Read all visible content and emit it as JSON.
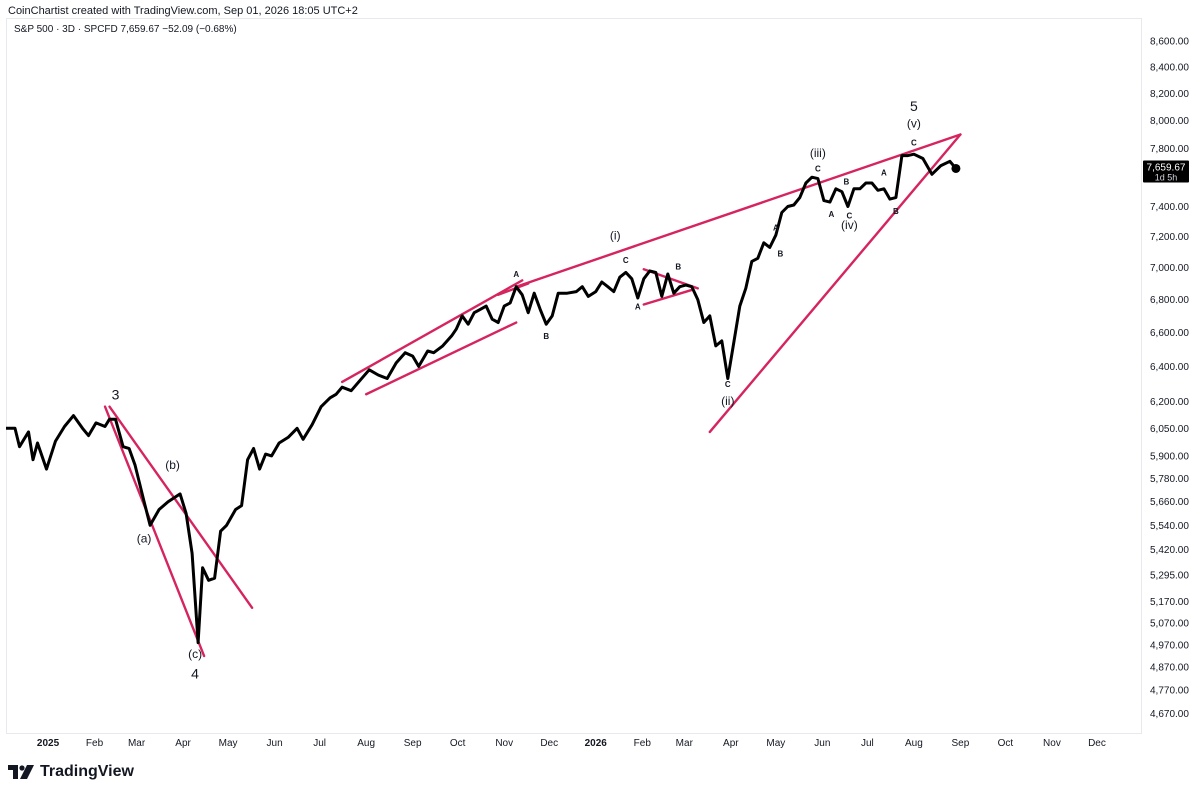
{
  "header": {
    "credit": "CoinChartist created with TradingView.com, Sep 01, 2026 18:05 UTC+2",
    "symbol_line": "S&P 500 · 3D · SPCFD  7,659.67  −52.09 (−0.68%)"
  },
  "footer": {
    "brand": "TradingView"
  },
  "colors": {
    "price": "#000000",
    "trendline": "#d6245e",
    "price_tag_bg": "#000000",
    "price_tag_text": "#ffffff"
  },
  "chart_data": {
    "type": "line",
    "y_scale": "log",
    "y_ticks": [
      "8,600.00",
      "8,400.00",
      "8,200.00",
      "8,000.00",
      "7,800.00",
      "7,600.00",
      "7,400.00",
      "7,200.00",
      "7,000.00",
      "6,800.00",
      "6,600.00",
      "6,400.00",
      "6,200.00",
      "6,050.00",
      "5,900.00",
      "5,780.00",
      "5,660.00",
      "5,540.00",
      "5,420.00",
      "5,295.00",
      "5,170.00",
      "5,070.00",
      "4,970.00",
      "4,870.00",
      "4,770.00",
      "4,670.00"
    ],
    "y_tick_values": [
      8600,
      8400,
      8200,
      8000,
      7800,
      7600,
      7400,
      7200,
      7000,
      6800,
      6600,
      6400,
      6200,
      6050,
      5900,
      5780,
      5660,
      5540,
      5420,
      5295,
      5170,
      5070,
      4970,
      4870,
      4770,
      4670
    ],
    "x_ticks": [
      {
        "label": "2025",
        "t": "2025-01-01",
        "bold": true
      },
      {
        "label": "Feb",
        "t": "2025-02-01",
        "bold": false
      },
      {
        "label": "Mar",
        "t": "2025-03-01",
        "bold": false
      },
      {
        "label": "Apr",
        "t": "2025-04-01",
        "bold": false
      },
      {
        "label": "May",
        "t": "2025-05-01",
        "bold": false
      },
      {
        "label": "Jun",
        "t": "2025-06-01",
        "bold": false
      },
      {
        "label": "Jul",
        "t": "2025-07-01",
        "bold": false
      },
      {
        "label": "Aug",
        "t": "2025-08-01",
        "bold": false
      },
      {
        "label": "Sep",
        "t": "2025-09-01",
        "bold": false
      },
      {
        "label": "Oct",
        "t": "2025-10-01",
        "bold": false
      },
      {
        "label": "Nov",
        "t": "2025-11-01",
        "bold": false
      },
      {
        "label": "Dec",
        "t": "2025-12-01",
        "bold": false
      },
      {
        "label": "2026",
        "t": "2026-01-01",
        "bold": true
      },
      {
        "label": "Feb",
        "t": "2026-02-01",
        "bold": false
      },
      {
        "label": "Mar",
        "t": "2026-03-01",
        "bold": false
      },
      {
        "label": "Apr",
        "t": "2026-04-01",
        "bold": false
      },
      {
        "label": "May",
        "t": "2026-05-01",
        "bold": false
      },
      {
        "label": "Jun",
        "t": "2026-06-01",
        "bold": false
      },
      {
        "label": "Jul",
        "t": "2026-07-01",
        "bold": false
      },
      {
        "label": "Aug",
        "t": "2026-08-01",
        "bold": false
      },
      {
        "label": "Sep",
        "t": "2026-09-01",
        "bold": false
      },
      {
        "label": "Oct",
        "t": "2026-10-01",
        "bold": false
      },
      {
        "label": "Nov",
        "t": "2026-11-01",
        "bold": false
      },
      {
        "label": "Dec",
        "t": "2026-12-01",
        "bold": false
      }
    ],
    "x_range": [
      "2024-12-04",
      "2026-12-31"
    ],
    "y_range": [
      4600,
      8750
    ],
    "current_price": "7,659.67",
    "current_price_value": 7659.67,
    "countdown": "1d 5h",
    "series": [
      {
        "points": [
          [
            "2024-12-04",
            6050
          ],
          [
            "2024-12-10",
            6050
          ],
          [
            "2024-12-13",
            5950
          ],
          [
            "2024-12-19",
            6030
          ],
          [
            "2024-12-22",
            5880
          ],
          [
            "2024-12-25",
            5970
          ],
          [
            "2024-12-31",
            5830
          ],
          [
            "2025-01-06",
            5980
          ],
          [
            "2025-01-12",
            6060
          ],
          [
            "2025-01-18",
            6120
          ],
          [
            "2025-01-24",
            6050
          ],
          [
            "2025-01-28",
            6010
          ],
          [
            "2025-02-02",
            6080
          ],
          [
            "2025-02-08",
            6060
          ],
          [
            "2025-02-11",
            6100
          ],
          [
            "2025-02-15",
            6100
          ],
          [
            "2025-02-20",
            5950
          ],
          [
            "2025-02-24",
            5940
          ],
          [
            "2025-02-28",
            5850
          ],
          [
            "2025-03-06",
            5660
          ],
          [
            "2025-03-10",
            5540
          ],
          [
            "2025-03-16",
            5620
          ],
          [
            "2025-03-22",
            5660
          ],
          [
            "2025-03-30",
            5700
          ],
          [
            "2025-04-03",
            5600
          ],
          [
            "2025-04-07",
            5400
          ],
          [
            "2025-04-11",
            4980
          ],
          [
            "2025-04-14",
            5330
          ],
          [
            "2025-04-18",
            5270
          ],
          [
            "2025-04-22",
            5280
          ],
          [
            "2025-04-26",
            5510
          ],
          [
            "2025-04-30",
            5540
          ],
          [
            "2025-05-06",
            5620
          ],
          [
            "2025-05-10",
            5640
          ],
          [
            "2025-05-14",
            5880
          ],
          [
            "2025-05-18",
            5940
          ],
          [
            "2025-05-22",
            5830
          ],
          [
            "2025-05-26",
            5910
          ],
          [
            "2025-05-30",
            5900
          ],
          [
            "2025-06-04",
            5970
          ],
          [
            "2025-06-10",
            6000
          ],
          [
            "2025-06-16",
            6050
          ],
          [
            "2025-06-20",
            5990
          ],
          [
            "2025-06-26",
            6070
          ],
          [
            "2025-07-02",
            6170
          ],
          [
            "2025-07-08",
            6220
          ],
          [
            "2025-07-12",
            6240
          ],
          [
            "2025-07-16",
            6280
          ],
          [
            "2025-07-22",
            6260
          ],
          [
            "2025-07-28",
            6320
          ],
          [
            "2025-08-03",
            6380
          ],
          [
            "2025-08-09",
            6350
          ],
          [
            "2025-08-15",
            6330
          ],
          [
            "2025-08-21",
            6420
          ],
          [
            "2025-08-27",
            6480
          ],
          [
            "2025-09-01",
            6460
          ],
          [
            "2025-09-05",
            6400
          ],
          [
            "2025-09-11",
            6490
          ],
          [
            "2025-09-15",
            6480
          ],
          [
            "2025-09-21",
            6520
          ],
          [
            "2025-09-27",
            6580
          ],
          [
            "2025-09-30",
            6620
          ],
          [
            "2025-10-04",
            6700
          ],
          [
            "2025-10-08",
            6650
          ],
          [
            "2025-10-12",
            6720
          ],
          [
            "2025-10-16",
            6740
          ],
          [
            "2025-10-20",
            6760
          ],
          [
            "2025-10-24",
            6680
          ],
          [
            "2025-10-28",
            6660
          ],
          [
            "2025-11-01",
            6760
          ],
          [
            "2025-11-05",
            6780
          ],
          [
            "2025-11-09",
            6880
          ],
          [
            "2025-11-13",
            6830
          ],
          [
            "2025-11-17",
            6720
          ],
          [
            "2025-11-21",
            6840
          ],
          [
            "2025-11-25",
            6740
          ],
          [
            "2025-11-29",
            6650
          ],
          [
            "2025-12-03",
            6700
          ],
          [
            "2025-12-07",
            6840
          ],
          [
            "2025-12-13",
            6840
          ],
          [
            "2025-12-19",
            6850
          ],
          [
            "2025-12-23",
            6880
          ],
          [
            "2025-12-27",
            6820
          ],
          [
            "2026-01-01",
            6850
          ],
          [
            "2026-01-05",
            6910
          ],
          [
            "2026-01-09",
            6880
          ],
          [
            "2026-01-13",
            6850
          ],
          [
            "2026-01-17",
            6940
          ],
          [
            "2026-01-21",
            6970
          ],
          [
            "2026-01-25",
            6930
          ],
          [
            "2026-01-29",
            6810
          ],
          [
            "2026-02-02",
            6930
          ],
          [
            "2026-02-06",
            6980
          ],
          [
            "2026-02-10",
            6970
          ],
          [
            "2026-02-14",
            6820
          ],
          [
            "2026-02-18",
            6960
          ],
          [
            "2026-02-22",
            6840
          ],
          [
            "2026-02-26",
            6880
          ],
          [
            "2026-03-02",
            6890
          ],
          [
            "2026-03-06",
            6880
          ],
          [
            "2026-03-10",
            6800
          ],
          [
            "2026-03-14",
            6660
          ],
          [
            "2026-03-18",
            6700
          ],
          [
            "2026-03-22",
            6520
          ],
          [
            "2026-03-26",
            6550
          ],
          [
            "2026-03-30",
            6330
          ],
          [
            "2026-04-03",
            6540
          ],
          [
            "2026-04-07",
            6760
          ],
          [
            "2026-04-11",
            6870
          ],
          [
            "2026-04-15",
            7040
          ],
          [
            "2026-04-19",
            7060
          ],
          [
            "2026-04-23",
            7160
          ],
          [
            "2026-04-27",
            7130
          ],
          [
            "2026-05-01",
            7210
          ],
          [
            "2026-05-05",
            7360
          ],
          [
            "2026-05-09",
            7400
          ],
          [
            "2026-05-13",
            7410
          ],
          [
            "2026-05-17",
            7460
          ],
          [
            "2026-05-21",
            7560
          ],
          [
            "2026-05-25",
            7600
          ],
          [
            "2026-05-29",
            7590
          ],
          [
            "2026-06-02",
            7440
          ],
          [
            "2026-06-06",
            7430
          ],
          [
            "2026-06-10",
            7520
          ],
          [
            "2026-06-14",
            7500
          ],
          [
            "2026-06-18",
            7400
          ],
          [
            "2026-06-22",
            7520
          ],
          [
            "2026-06-26",
            7520
          ],
          [
            "2026-06-30",
            7560
          ],
          [
            "2026-07-04",
            7560
          ],
          [
            "2026-07-08",
            7510
          ],
          [
            "2026-07-12",
            7520
          ],
          [
            "2026-07-16",
            7450
          ],
          [
            "2026-07-20",
            7460
          ],
          [
            "2026-07-24",
            7750
          ],
          [
            "2026-07-28",
            7750
          ],
          [
            "2026-08-01",
            7760
          ],
          [
            "2026-08-07",
            7730
          ],
          [
            "2026-08-13",
            7620
          ],
          [
            "2026-08-19",
            7680
          ],
          [
            "2026-08-25",
            7710
          ],
          [
            "2026-08-29",
            7660
          ]
        ]
      }
    ],
    "wave_labels": [
      {
        "text": "3",
        "t": "2025-02-15",
        "v": 6210,
        "size": "lg"
      },
      {
        "text": "(a)",
        "t": "2025-03-06",
        "v": 5455,
        "size": "md"
      },
      {
        "text": "(b)",
        "t": "2025-03-25",
        "v": 5830,
        "size": "md"
      },
      {
        "text": "(c)",
        "t": "2025-04-09",
        "v": 4910,
        "size": "md"
      },
      {
        "text": "4",
        "t": "2025-04-09",
        "v": 4820,
        "size": "lg"
      },
      {
        "text": "A",
        "t": "2025-11-09",
        "v": 6940,
        "size": "sm"
      },
      {
        "text": "B",
        "t": "2025-11-29",
        "v": 6560,
        "size": "sm"
      },
      {
        "text": "(i)",
        "t": "2026-01-14",
        "v": 7180,
        "size": "md"
      },
      {
        "text": "C",
        "t": "2026-01-21",
        "v": 7030,
        "size": "sm"
      },
      {
        "text": "A",
        "t": "2026-01-29",
        "v": 6740,
        "size": "sm"
      },
      {
        "text": "B",
        "t": "2026-02-25",
        "v": 6990,
        "size": "sm"
      },
      {
        "text": "C",
        "t": "2026-03-30",
        "v": 6280,
        "size": "sm"
      },
      {
        "text": "(ii)",
        "t": "2026-03-30",
        "v": 6180,
        "size": "md"
      },
      {
        "text": "A",
        "t": "2026-05-01",
        "v": 7240,
        "size": "sm"
      },
      {
        "text": "B",
        "t": "2026-05-04",
        "v": 7070,
        "size": "sm"
      },
      {
        "text": "(iii)",
        "t": "2026-05-29",
        "v": 7740,
        "size": "md"
      },
      {
        "text": "C",
        "t": "2026-05-29",
        "v": 7640,
        "size": "sm"
      },
      {
        "text": "A",
        "t": "2026-06-07",
        "v": 7330,
        "size": "sm"
      },
      {
        "text": "B",
        "t": "2026-06-17",
        "v": 7550,
        "size": "sm"
      },
      {
        "text": "C",
        "t": "2026-06-19",
        "v": 7320,
        "size": "sm"
      },
      {
        "text": "(iv)",
        "t": "2026-06-19",
        "v": 7250,
        "size": "md"
      },
      {
        "text": "A",
        "t": "2026-07-12",
        "v": 7610,
        "size": "sm"
      },
      {
        "text": "B",
        "t": "2026-07-20",
        "v": 7350,
        "size": "sm"
      },
      {
        "text": "5",
        "t": "2026-08-01",
        "v": 8070,
        "size": "lg"
      },
      {
        "text": "(v)",
        "t": "2026-08-01",
        "v": 7950,
        "size": "md"
      },
      {
        "text": "C",
        "t": "2026-08-01",
        "v": 7820,
        "size": "sm"
      }
    ],
    "trendlines": [
      {
        "t1": "2025-02-08",
        "v1": 6170,
        "t2": "2025-04-15",
        "v2": 4920
      },
      {
        "t1": "2025-02-11",
        "v1": 6170,
        "t2": "2025-05-17",
        "v2": 5140
      },
      {
        "t1": "2025-07-16",
        "v1": 6310,
        "t2": "2025-11-13",
        "v2": 6920
      },
      {
        "t1": "2025-08-01",
        "v1": 6240,
        "t2": "2025-11-09",
        "v2": 6660
      },
      {
        "t1": "2025-10-28",
        "v1": 6830,
        "t2": "2025-11-17",
        "v2": 6900
      },
      {
        "t1": "2025-11-09",
        "v1": 6880,
        "t2": "2026-09-01",
        "v2": 7900
      },
      {
        "t1": "2026-02-02",
        "v1": 6990,
        "t2": "2026-03-10",
        "v2": 6870
      },
      {
        "t1": "2026-02-02",
        "v1": 6770,
        "t2": "2026-03-06",
        "v2": 6860
      },
      {
        "t1": "2026-03-18",
        "v1": 6030,
        "t2": "2026-09-01",
        "v2": 7900
      }
    ]
  }
}
